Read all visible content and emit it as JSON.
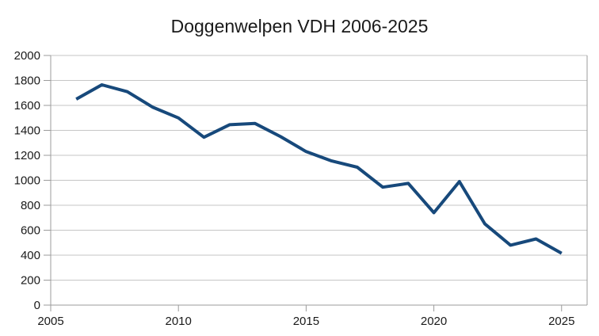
{
  "chart_data": {
    "type": "line",
    "title": "Doggenwelpen VDH 2006-2025",
    "x": [
      2006,
      2007,
      2008,
      2009,
      2010,
      2011,
      2012,
      2013,
      2014,
      2015,
      2016,
      2017,
      2018,
      2019,
      2020,
      2021,
      2022,
      2023,
      2024,
      2025
    ],
    "values": [
      1650,
      1765,
      1710,
      1585,
      1500,
      1345,
      1445,
      1455,
      1350,
      1230,
      1155,
      1105,
      945,
      975,
      740,
      990,
      650,
      480,
      530,
      415
    ],
    "xlabel": "",
    "ylabel": "",
    "xlim": [
      2005,
      2026
    ],
    "ylim": [
      0,
      2000
    ],
    "x_ticks": [
      2005,
      2010,
      2015,
      2020,
      2025
    ],
    "y_ticks": [
      0,
      200,
      400,
      600,
      800,
      1000,
      1200,
      1400,
      1600,
      1800,
      2000
    ],
    "grid": true,
    "legend": false,
    "line_color": "#17497B",
    "grid_color": "#c6c6c6",
    "axis_color": "#9b9b9b",
    "text_color": "#1a1a1a",
    "background_color": "#ffffff"
  }
}
